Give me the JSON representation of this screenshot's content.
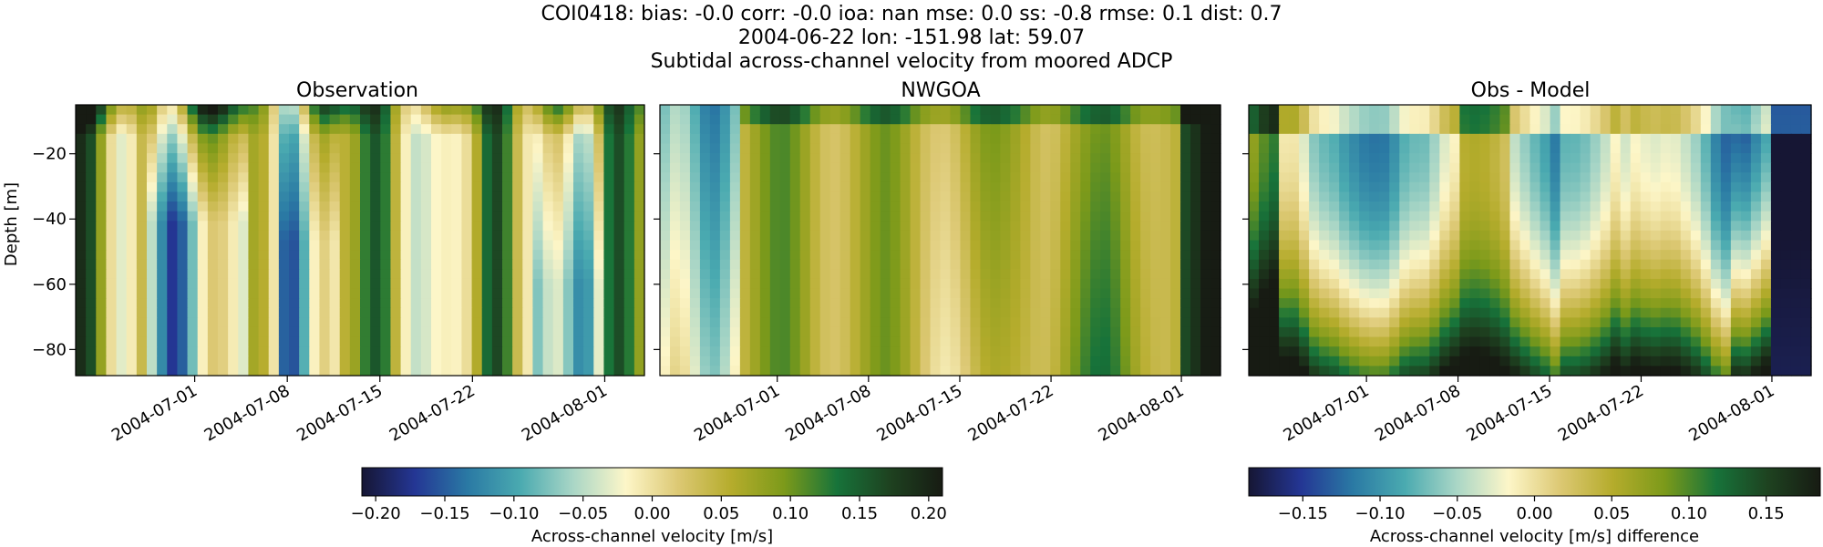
{
  "figure": {
    "title_lines": [
      "COI0418: bias: -0.0  corr: -0.0  ioa: nan  mse: 0.0  ss: -0.8  rmse: 0.1  dist: 0.7",
      "2004-06-22 lon: -151.98 lat: 59.07",
      "Subtidal across-channel velocity from moored ADCP"
    ]
  },
  "chart_data": [
    {
      "type": "heatmap",
      "title": "Observation",
      "ylabel": "Depth [m]",
      "ylim": [
        -88,
        -5
      ],
      "yticks": [
        -20,
        -40,
        -60,
        -80
      ],
      "xlim": [
        "2004-06-22",
        "2004-08-04"
      ],
      "xticks": [
        "2004-07-01",
        "2004-07-08",
        "2004-07-15",
        "2004-07-22",
        "2004-08-01"
      ],
      "colormap": "delta-style blue-cream-green",
      "clim": [
        -0.2,
        0.2
      ],
      "rows": 28,
      "cols": 56
    },
    {
      "type": "heatmap",
      "title": "NWGOA",
      "ylabel": "",
      "ylim": [
        -88,
        -5
      ],
      "xlim": [
        "2004-06-22",
        "2004-08-04"
      ],
      "xticks": [
        "2004-07-01",
        "2004-07-08",
        "2004-07-15",
        "2004-07-22",
        "2004-08-01"
      ],
      "colormap": "delta-style blue-cream-green",
      "clim": [
        -0.2,
        0.2
      ],
      "rows": 28,
      "cols": 56
    },
    {
      "type": "heatmap",
      "title": "Obs - Model",
      "ylabel": "",
      "ylim": [
        -88,
        -5
      ],
      "xlim": [
        "2004-06-22",
        "2004-08-04"
      ],
      "xticks": [
        "2004-07-01",
        "2004-07-08",
        "2004-07-15",
        "2004-07-22",
        "2004-08-01"
      ],
      "colormap": "delta-style blue-cream-green",
      "clim": [
        -0.18,
        0.18
      ],
      "rows": 28,
      "cols": 56
    }
  ],
  "colorbars": [
    {
      "label": "Across-channel velocity [m/s]",
      "range": [
        -0.21,
        0.21
      ],
      "ticks": [
        "−0.20",
        "−0.15",
        "−0.10",
        "−0.05",
        "0.00",
        "0.05",
        "0.10",
        "0.15",
        "0.20"
      ],
      "tick_values": [
        -0.2,
        -0.15,
        -0.1,
        -0.05,
        0,
        0.05,
        0.1,
        0.15,
        0.2
      ]
    },
    {
      "label": "Across-channel velocity [m/s] difference",
      "range": [
        -0.185,
        0.185
      ],
      "ticks": [
        "−0.15",
        "−0.10",
        "−0.05",
        "0.00",
        "0.05",
        "0.10",
        "0.15"
      ],
      "tick_values": [
        -0.15,
        -0.1,
        -0.05,
        0,
        0.05,
        0.1,
        0.15
      ]
    }
  ],
  "colormap_stops": [
    "#161634",
    "#243694",
    "#2a79a4",
    "#4aaab0",
    "#a9d6c6",
    "#fdf6c8",
    "#dcc873",
    "#b5ac2c",
    "#7c9a1a",
    "#17733a",
    "#1e4220",
    "#171b13"
  ]
}
